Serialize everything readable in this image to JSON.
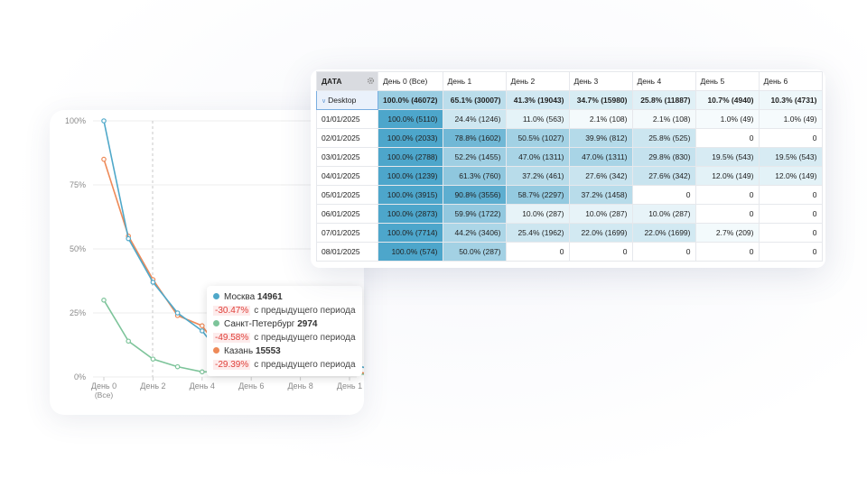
{
  "chart": {
    "y_ticks": [
      "100%",
      "75%",
      "50%",
      "25%",
      "0%"
    ],
    "x_ticks": [
      "День 0",
      "День 2",
      "День 4",
      "День 6",
      "День 8",
      "День 1"
    ],
    "x_sublabel": "(Все)",
    "tooltip": [
      {
        "name": "Москва",
        "value": "14961",
        "change": "-30.47%",
        "suffix": "с предыдущего периода",
        "color": "#4fa8c9"
      },
      {
        "name": "Санкт-Петербург",
        "value": "2974",
        "change": "-49.58%",
        "suffix": "с предыдущего периода",
        "color": "#7dc49a"
      },
      {
        "name": "Казань",
        "value": "15553",
        "change": "-29.39%",
        "suffix": "с предыдущего периода",
        "color": "#ee8a58"
      }
    ]
  },
  "chart_data": {
    "type": "line",
    "x": [
      0,
      1,
      2,
      3,
      4,
      5,
      6,
      7,
      8,
      9,
      10,
      10.7
    ],
    "ylim": [
      0,
      100
    ],
    "series": [
      {
        "name": "Москва",
        "color": "#4fa8c9",
        "values": [
          100,
          54,
          37,
          25,
          18,
          6,
          6,
          5,
          5,
          5,
          5,
          3.5
        ]
      },
      {
        "name": "Санкт-Петербург",
        "color": "#7dc49a",
        "values": [
          30,
          14,
          7,
          4,
          2,
          2,
          1.5,
          1.5,
          1.5,
          1.5,
          1.5,
          1
        ]
      },
      {
        "name": "Казань",
        "color": "#ee8a58",
        "values": [
          85,
          55,
          38,
          24,
          20,
          7,
          7,
          3,
          2,
          2,
          2,
          1.5
        ]
      }
    ]
  },
  "table": {
    "date_header": "ДАТА",
    "columns": [
      "День 0 (Все)",
      "День 1",
      "День 2",
      "День 3",
      "День 4",
      "День 5",
      "День 6"
    ],
    "total": {
      "label": "Desktop",
      "cells": [
        {
          "text": "100.0% (46072)",
          "pct": 100
        },
        {
          "text": "65.1% (30007)",
          "pct": 65.1
        },
        {
          "text": "41.3% (19043)",
          "pct": 41.3
        },
        {
          "text": "34.7% (15980)",
          "pct": 34.7
        },
        {
          "text": "25.8% (11887)",
          "pct": 25.8
        },
        {
          "text": "10.7% (4940)",
          "pct": 10.7
        },
        {
          "text": "10.3% (4731)",
          "pct": 10.3
        }
      ]
    },
    "rows": [
      {
        "date": "01/01/2025",
        "cells": [
          {
            "text": "100.0% (5110)",
            "pct": 100
          },
          {
            "text": "24.4% (1246)",
            "pct": 24.4
          },
          {
            "text": "11.0% (563)",
            "pct": 11.0
          },
          {
            "text": "2.1% (108)",
            "pct": 2.1
          },
          {
            "text": "2.1% (108)",
            "pct": 2.1
          },
          {
            "text": "1.0% (49)",
            "pct": 1.0
          },
          {
            "text": "1.0% (49)",
            "pct": 1.0
          }
        ]
      },
      {
        "date": "02/01/2025",
        "cells": [
          {
            "text": "100.0% (2033)",
            "pct": 100
          },
          {
            "text": "78.8% (1602)",
            "pct": 78.8
          },
          {
            "text": "50.5% (1027)",
            "pct": 50.5
          },
          {
            "text": "39.9% (812)",
            "pct": 39.9
          },
          {
            "text": "25.8% (525)",
            "pct": 25.8
          },
          {
            "text": "0",
            "pct": 0
          },
          {
            "text": "0",
            "pct": 0
          }
        ]
      },
      {
        "date": "03/01/2025",
        "cells": [
          {
            "text": "100.0% (2788)",
            "pct": 100
          },
          {
            "text": "52.2% (1455)",
            "pct": 52.2
          },
          {
            "text": "47.0% (1311)",
            "pct": 47.0
          },
          {
            "text": "47.0% (1311)",
            "pct": 47.0
          },
          {
            "text": "29.8% (830)",
            "pct": 29.8
          },
          {
            "text": "19.5% (543)",
            "pct": 19.5
          },
          {
            "text": "19.5% (543)",
            "pct": 19.5
          }
        ]
      },
      {
        "date": "04/01/2025",
        "cells": [
          {
            "text": "100.0% (1239)",
            "pct": 100
          },
          {
            "text": "61.3% (760)",
            "pct": 61.3
          },
          {
            "text": "37.2% (461)",
            "pct": 37.2
          },
          {
            "text": "27.6% (342)",
            "pct": 27.6
          },
          {
            "text": "27.6% (342)",
            "pct": 27.6
          },
          {
            "text": "12.0% (149)",
            "pct": 12.0
          },
          {
            "text": "12.0% (149)",
            "pct": 12.0
          }
        ]
      },
      {
        "date": "05/01/2025",
        "cells": [
          {
            "text": "100.0% (3915)",
            "pct": 100
          },
          {
            "text": "90.8% (3556)",
            "pct": 90.8
          },
          {
            "text": "58.7% (2297)",
            "pct": 58.7
          },
          {
            "text": "37.2% (1458)",
            "pct": 37.2
          },
          {
            "text": "0",
            "pct": 0
          },
          {
            "text": "0",
            "pct": 0
          },
          {
            "text": "0",
            "pct": 0
          }
        ]
      },
      {
        "date": "06/01/2025",
        "cells": [
          {
            "text": "100.0% (2873)",
            "pct": 100
          },
          {
            "text": "59.9% (1722)",
            "pct": 59.9
          },
          {
            "text": "10.0% (287)",
            "pct": 10.0
          },
          {
            "text": "10.0% (287)",
            "pct": 10.0
          },
          {
            "text": "10.0% (287)",
            "pct": 10.0
          },
          {
            "text": "0",
            "pct": 0
          },
          {
            "text": "0",
            "pct": 0
          }
        ]
      },
      {
        "date": "07/01/2025",
        "cells": [
          {
            "text": "100.0% (7714)",
            "pct": 100
          },
          {
            "text": "44.2% (3406)",
            "pct": 44.2
          },
          {
            "text": "25.4% (1962)",
            "pct": 25.4
          },
          {
            "text": "22.0% (1699)",
            "pct": 22.0
          },
          {
            "text": "22.0% (1699)",
            "pct": 22.0
          },
          {
            "text": "2.7% (209)",
            "pct": 2.7
          },
          {
            "text": "0",
            "pct": 0
          }
        ]
      },
      {
        "date": "08/01/2025",
        "cells": [
          {
            "text": "100.0% (574)",
            "pct": 100
          },
          {
            "text": "50.0% (287)",
            "pct": 50.0
          },
          {
            "text": "0",
            "pct": 0
          },
          {
            "text": "0",
            "pct": 0
          },
          {
            "text": "0",
            "pct": 0
          },
          {
            "text": "0",
            "pct": 0
          },
          {
            "text": "0",
            "pct": 0
          }
        ]
      }
    ]
  }
}
